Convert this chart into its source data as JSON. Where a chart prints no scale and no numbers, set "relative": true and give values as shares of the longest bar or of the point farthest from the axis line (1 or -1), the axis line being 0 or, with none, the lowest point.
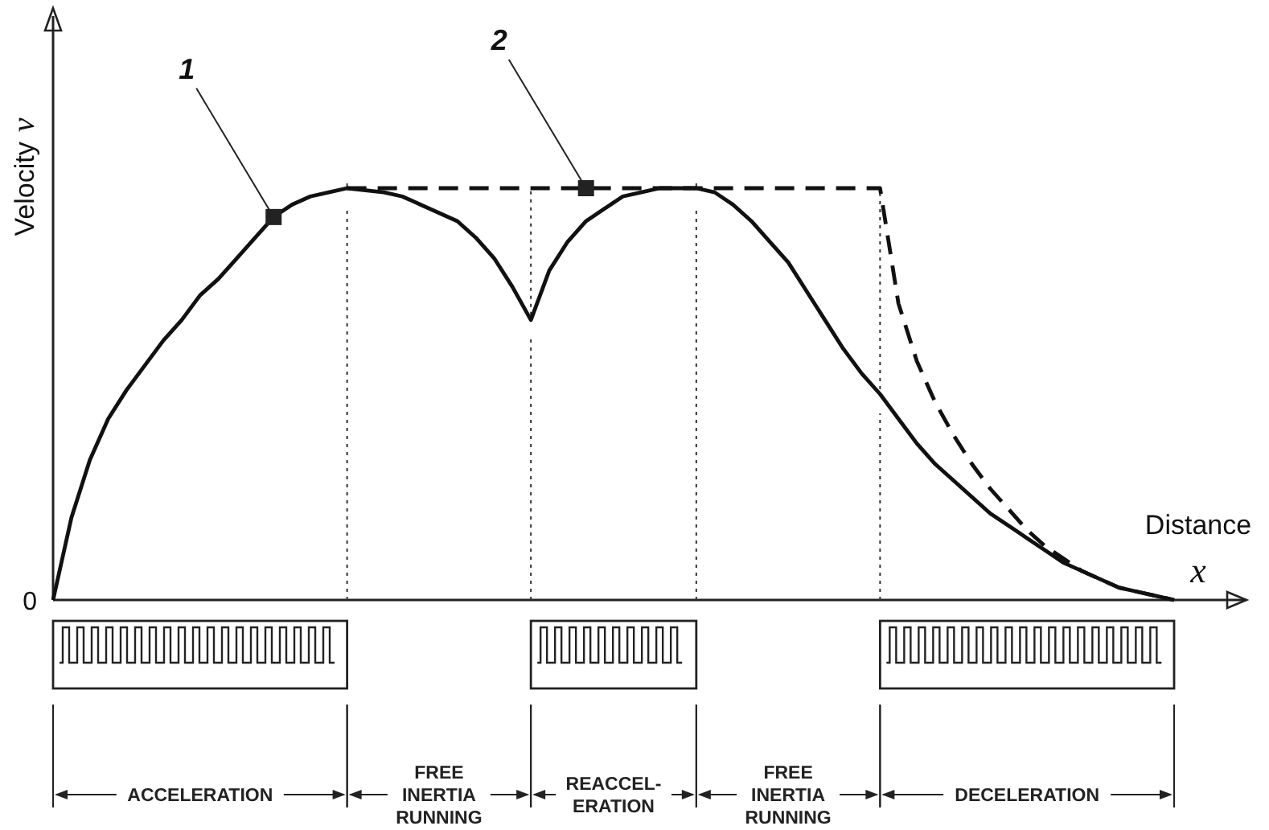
{
  "chart_data": {
    "type": "line",
    "relative": true,
    "grid": "x",
    "xlabel": "Distance x",
    "ylabel": "Velocity v",
    "categories": [
      null,
      null,
      null,
      null,
      null,
      null,
      null,
      null,
      null,
      null,
      null,
      null,
      null,
      null,
      null,
      null,
      null,
      null,
      null,
      null,
      null,
      null,
      null,
      null,
      null,
      null,
      null,
      null,
      null,
      null,
      null,
      null,
      null,
      null,
      null,
      null,
      null,
      null,
      null,
      null,
      null,
      null,
      null,
      null,
      null,
      null,
      null,
      null,
      null,
      null,
      null,
      null,
      null,
      null,
      null,
      null,
      null,
      null,
      null,
      null,
      null,
      null
    ],
    "series": [
      {
        "name": "1",
        "color": "#111111",
        "line_style": "solid",
        "values": [
          0,
          0.2,
          0.34,
          0.44,
          0.51,
          0.57,
          0.63,
          0.68,
          0.74,
          0.78,
          0.83,
          0.88,
          0.93,
          0.96,
          0.98,
          0.99,
          1,
          0.995,
          0.99,
          0.98,
          0.96,
          0.94,
          0.92,
          0.88,
          0.83,
          0.76,
          0.68,
          0.8,
          0.87,
          0.92,
          0.95,
          0.98,
          0.99,
          1,
          1,
          1,
          0.99,
          0.96,
          0.92,
          0.87,
          0.82,
          0.75,
          0.68,
          0.61,
          0.55,
          0.5,
          0.44,
          0.38,
          0.33,
          0.29,
          0.25,
          0.21,
          0.18,
          0.15,
          0.12,
          0.09,
          0.07,
          0.05,
          0.03,
          0.02,
          0.01,
          0
        ]
      },
      {
        "name": "2",
        "color": "#111111",
        "line_style": "dashed",
        "values": [
          null,
          null,
          null,
          null,
          null,
          null,
          null,
          null,
          null,
          null,
          null,
          null,
          null,
          null,
          null,
          null,
          1,
          1,
          1,
          1,
          1,
          1,
          1,
          1,
          1,
          1,
          1,
          1,
          1,
          1,
          1,
          1,
          1,
          1,
          1,
          1,
          1,
          1,
          1,
          1,
          1,
          1,
          1,
          1,
          1,
          1,
          0.72,
          0.58,
          0.48,
          0.4,
          0.33,
          0.27,
          0.22,
          0.17,
          0.13,
          0.1,
          0.07,
          0.05,
          0.03,
          0.02,
          0.01,
          0
        ]
      }
    ],
    "annotations": [
      "0",
      "ACCELERATION",
      "FREE\nINERTIA\nRUNNING",
      "REACCEL-\nERATION",
      "FREE\nINERTIA\nRUNNING",
      "DECELERATION"
    ]
  }
}
